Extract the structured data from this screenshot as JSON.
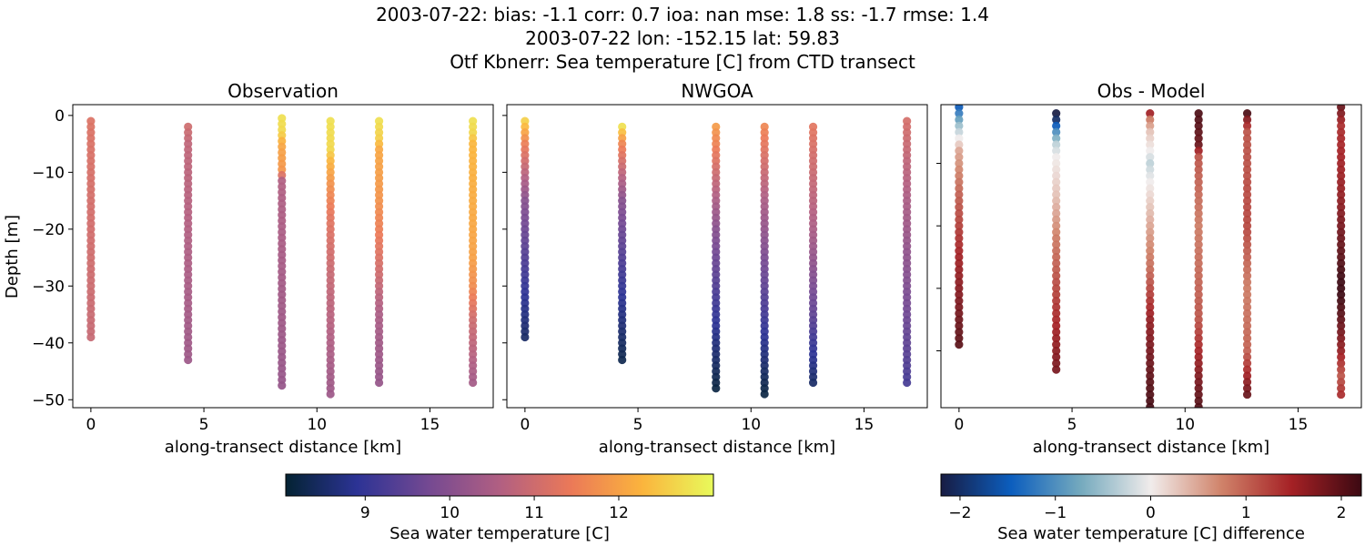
{
  "chart_data": {
    "type": "scatter",
    "title_lines": [
      "2003-07-22: bias: -1.1  corr: 0.7  ioa: nan  mse: 1.8  ss: -1.7  rmse: 1.4",
      "2003-07-22 lon: -152.15 lat: 59.83",
      "Otf Kbnerr: Sea temperature [C] from CTD transect"
    ],
    "xlabel": "along-transect distance [km]",
    "ylabel": "Depth [m]",
    "xlim": [
      -0.8,
      17.8
    ],
    "xticks": [
      0,
      5,
      10,
      15
    ],
    "cast_x": [
      0,
      4.3,
      8.45,
      10.6,
      12.75,
      16.9
    ],
    "panels": [
      {
        "title": "Observation",
        "ylim": [
          -51.4,
          1.9
        ],
        "yticks": [
          0,
          -10,
          -20,
          -30,
          -40,
          -50
        ],
        "show_ytick_labels": true,
        "colormap": "thermal",
        "casts": [
          {
            "depth_range": [
              -1,
              -39
            ],
            "profile": [
              [
                -1,
                11.2
              ],
              [
                -39,
                10.9
              ]
            ]
          },
          {
            "depth_range": [
              -2,
              -43
            ],
            "profile": [
              [
                -2,
                11.0
              ],
              [
                -5,
                10.8
              ],
              [
                -43,
                10.3
              ]
            ]
          },
          {
            "depth_range": [
              -0.5,
              -48
            ],
            "profile": [
              [
                -0.5,
                12.8
              ],
              [
                -3,
                12.7
              ],
              [
                -5,
                12.1
              ],
              [
                -10,
                11.8
              ],
              [
                -11,
                10.6
              ],
              [
                -48,
                10.2
              ]
            ]
          },
          {
            "depth_range": [
              -1,
              -49
            ],
            "profile": [
              [
                -1,
                12.8
              ],
              [
                -6,
                12.7
              ],
              [
                -8,
                12.3
              ],
              [
                -12,
                11.8
              ],
              [
                -18,
                11.3
              ],
              [
                -28,
                10.9
              ],
              [
                -49,
                10.3
              ]
            ]
          },
          {
            "depth_range": [
              -1,
              -47
            ],
            "profile": [
              [
                -1,
                12.8
              ],
              [
                -4,
                12.6
              ],
              [
                -6,
                12.1
              ],
              [
                -15,
                11.8
              ],
              [
                -25,
                11.2
              ],
              [
                -35,
                10.5
              ],
              [
                -47,
                10.2
              ]
            ]
          },
          {
            "depth_range": [
              -1,
              -47
            ],
            "profile": [
              [
                -1,
                12.8
              ],
              [
                -3,
                12.7
              ],
              [
                -5,
                12.3
              ],
              [
                -25,
                12.0
              ],
              [
                -30,
                11.7
              ],
              [
                -36,
                11.0
              ],
              [
                -47,
                10.4
              ]
            ]
          }
        ]
      },
      {
        "title": "NWGOA",
        "ylim": [
          -51.4,
          1.9
        ],
        "yticks": [
          0,
          -10,
          -20,
          -30,
          -40,
          -50
        ],
        "show_ytick_labels": false,
        "colormap": "thermal",
        "casts": [
          {
            "depth_range": [
              -1,
              -39
            ],
            "profile": [
              [
                -1,
                12.6
              ],
              [
                -5,
                11.5
              ],
              [
                -15,
                10.0
              ],
              [
                -30,
                9.0
              ],
              [
                -39,
                8.5
              ]
            ]
          },
          {
            "depth_range": [
              -2,
              -43
            ],
            "profile": [
              [
                -2,
                12.8
              ],
              [
                -5,
                11.6
              ],
              [
                -15,
                10.0
              ],
              [
                -30,
                9.0
              ],
              [
                -43,
                8.3
              ]
            ]
          },
          {
            "depth_range": [
              -2,
              -48
            ],
            "profile": [
              [
                -2,
                11.9
              ],
              [
                -10,
                11.0
              ],
              [
                -20,
                10.0
              ],
              [
                -35,
                9.0
              ],
              [
                -48,
                8.2
              ]
            ]
          },
          {
            "depth_range": [
              -2,
              -49
            ],
            "profile": [
              [
                -2,
                11.6
              ],
              [
                -15,
                10.5
              ],
              [
                -30,
                9.5
              ],
              [
                -49,
                8.2
              ]
            ]
          },
          {
            "depth_range": [
              -2,
              -47
            ],
            "profile": [
              [
                -2,
                11.3
              ],
              [
                -20,
                10.5
              ],
              [
                -35,
                9.5
              ],
              [
                -47,
                8.5
              ]
            ]
          },
          {
            "depth_range": [
              -1,
              -47
            ],
            "profile": [
              [
                -1,
                11.1
              ],
              [
                -15,
                10.5
              ],
              [
                -40,
                9.5
              ],
              [
                -47,
                9.2
              ]
            ]
          }
        ]
      },
      {
        "title": "Obs - Model",
        "ylim": [
          -49.1,
          -0.6
        ],
        "yticks": [
          -10,
          -20,
          -30,
          -40
        ],
        "show_ytick_labels": false,
        "colormap": "balance",
        "casts": [
          {
            "depth_range": [
              -1,
              -39
            ],
            "profile": [
              [
                -1,
                -1.5
              ],
              [
                -4,
                -0.5
              ],
              [
                -6,
                0.0
              ],
              [
                -8,
                0.5
              ],
              [
                -15,
                1.0
              ],
              [
                -25,
                1.5
              ],
              [
                -39,
                2.0
              ]
            ]
          },
          {
            "depth_range": [
              -2,
              -43
            ],
            "profile": [
              [
                -2,
                -2.2
              ],
              [
                -3,
                -2.0
              ],
              [
                -5,
                -1.0
              ],
              [
                -7,
                -0.3
              ],
              [
                -9,
                0.0
              ],
              [
                -15,
                0.3
              ],
              [
                -22,
                0.8
              ],
              [
                -30,
                1.2
              ],
              [
                -43,
                1.8
              ]
            ]
          },
          {
            "depth_range": [
              -2,
              -50
            ],
            "profile": [
              [
                -2,
                1.5
              ],
              [
                -3,
                0.8
              ],
              [
                -5,
                0.3
              ],
              [
                -8,
                0.0
              ],
              [
                -10,
                -0.3
              ],
              [
                -13,
                0.0
              ],
              [
                -20,
                0.5
              ],
              [
                -28,
                1.0
              ],
              [
                -35,
                1.6
              ],
              [
                -50,
                2.2
              ]
            ]
          },
          {
            "depth_range": [
              -2,
              -51
            ],
            "profile": [
              [
                -2,
                2.1
              ],
              [
                -7,
                1.9
              ],
              [
                -9,
                1.1
              ],
              [
                -20,
                0.8
              ],
              [
                -35,
                1.1
              ],
              [
                -42,
                1.6
              ],
              [
                -51,
                2.2
              ]
            ]
          },
          {
            "depth_range": [
              -2,
              -47
            ],
            "profile": [
              [
                -2,
                2.1
              ],
              [
                -3,
                1.7
              ],
              [
                -5,
                1.1
              ],
              [
                -20,
                1.2
              ],
              [
                -30,
                0.8
              ],
              [
                -40,
                1.0
              ],
              [
                -47,
                1.9
              ]
            ]
          },
          {
            "depth_range": [
              -1,
              -47
            ],
            "profile": [
              [
                -1,
                1.9
              ],
              [
                -4,
                1.4
              ],
              [
                -15,
                1.6
              ],
              [
                -25,
                2.0
              ],
              [
                -30,
                2.3
              ],
              [
                -40,
                1.6
              ],
              [
                -44,
                1.1
              ],
              [
                -47,
                1.4
              ]
            ]
          }
        ]
      }
    ],
    "colorbars": [
      {
        "label": "Sea water temperature [C]",
        "range": [
          8.06,
          13.12
        ],
        "ticks": [
          9,
          10,
          11,
          12
        ],
        "colormap": "thermal"
      },
      {
        "label": "Sea water temperature [C] difference",
        "range": [
          -2.2,
          2.21
        ],
        "ticks": [
          -2,
          -1,
          0,
          1,
          2
        ],
        "colormap": "balance"
      }
    ],
    "colormaps": {
      "thermal": [
        "#042333",
        "#2c3395",
        "#744992",
        "#b15f82",
        "#eb7958",
        "#fbb43d",
        "#e8fa5b"
      ],
      "balance": [
        "#181c43",
        "#0c5ebe",
        "#75aabe",
        "#f1eceb",
        "#d0836a",
        "#a52125",
        "#3c0912"
      ]
    }
  }
}
